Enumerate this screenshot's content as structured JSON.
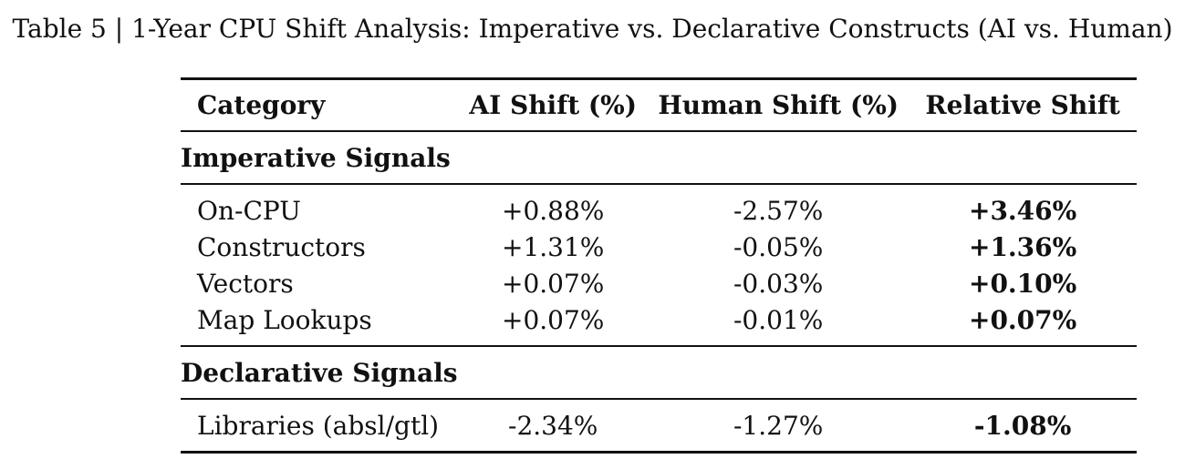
{
  "caption": "Table 5 | 1-Year CPU Shift Analysis: Imperative vs. Declarative Constructs (AI vs. Human)",
  "headers": {
    "category": "Category",
    "ai_shift": "AI Shift (%)",
    "human_shift": "Human Shift (%)",
    "relative_shift": "Relative Shift"
  },
  "sections": [
    {
      "title": "Imperative Signals",
      "rows": [
        {
          "category": "On-CPU",
          "ai_shift": "+0.88%",
          "human_shift": "-2.57%",
          "relative_shift": "+3.46%"
        },
        {
          "category": "Constructors",
          "ai_shift": "+1.31%",
          "human_shift": "-0.05%",
          "relative_shift": "+1.36%"
        },
        {
          "category": "Vectors",
          "ai_shift": "+0.07%",
          "human_shift": "-0.03%",
          "relative_shift": "+0.10%"
        },
        {
          "category": "Map Lookups",
          "ai_shift": "+0.07%",
          "human_shift": "-0.01%",
          "relative_shift": "+0.07%"
        }
      ]
    },
    {
      "title": "Declarative Signals",
      "rows": [
        {
          "category": "Libraries (absl/gtl)",
          "ai_shift": "-2.34%",
          "human_shift": "-1.27%",
          "relative_shift": "-1.08%"
        }
      ]
    }
  ]
}
